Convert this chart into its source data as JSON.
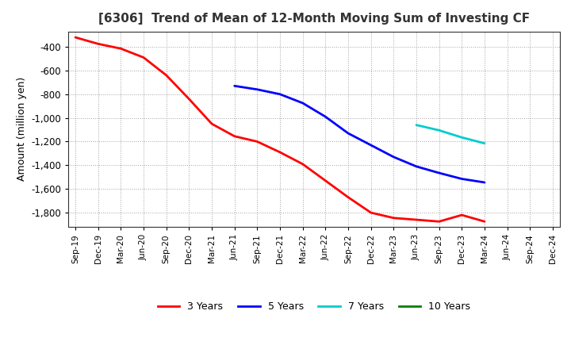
{
  "title": "[6306]  Trend of Mean of 12-Month Moving Sum of Investing CF",
  "ylabel": "Amount (million yen)",
  "background_color": "#ffffff",
  "grid_color": "#999999",
  "x_labels": [
    "Sep-19",
    "Dec-19",
    "Mar-20",
    "Jun-20",
    "Sep-20",
    "Dec-20",
    "Mar-21",
    "Jun-21",
    "Sep-21",
    "Dec-21",
    "Mar-22",
    "Jun-22",
    "Sep-22",
    "Dec-22",
    "Mar-23",
    "Jun-23",
    "Sep-23",
    "Dec-23",
    "Mar-24",
    "Jun-24",
    "Sep-24",
    "Dec-24"
  ],
  "series": {
    "3 Years": {
      "color": "#ff0000",
      "data_x": [
        0,
        1,
        2,
        3,
        4,
        5,
        6,
        7,
        8,
        9,
        10,
        11,
        12,
        13,
        14,
        15,
        16,
        17,
        18
      ],
      "data_y": [
        -320,
        -375,
        -415,
        -490,
        -640,
        -840,
        -1050,
        -1155,
        -1200,
        -1290,
        -1390,
        -1530,
        -1670,
        -1800,
        -1845,
        -1860,
        -1875,
        -1820,
        -1875
      ]
    },
    "5 Years": {
      "color": "#0000ff",
      "data_x": [
        7,
        8,
        9,
        10,
        11,
        12,
        13,
        14,
        15,
        16,
        17,
        18
      ],
      "data_y": [
        -730,
        -760,
        -800,
        -875,
        -990,
        -1130,
        -1230,
        -1330,
        -1410,
        -1465,
        -1515,
        -1545
      ]
    },
    "7 Years": {
      "color": "#00cccc",
      "data_x": [
        15,
        16,
        17,
        18
      ],
      "data_y": [
        -1060,
        -1105,
        -1165,
        -1215
      ]
    },
    "10 Years": {
      "color": "#008000",
      "data_x": [],
      "data_y": []
    }
  },
  "ylim": [
    -1920,
    -270
  ],
  "yticks": [
    -400,
    -600,
    -800,
    -1000,
    -1200,
    -1400,
    -1600,
    -1800
  ],
  "legend_labels": [
    "3 Years",
    "5 Years",
    "7 Years",
    "10 Years"
  ],
  "legend_colors": [
    "#ff0000",
    "#0000ff",
    "#00cccc",
    "#008000"
  ]
}
